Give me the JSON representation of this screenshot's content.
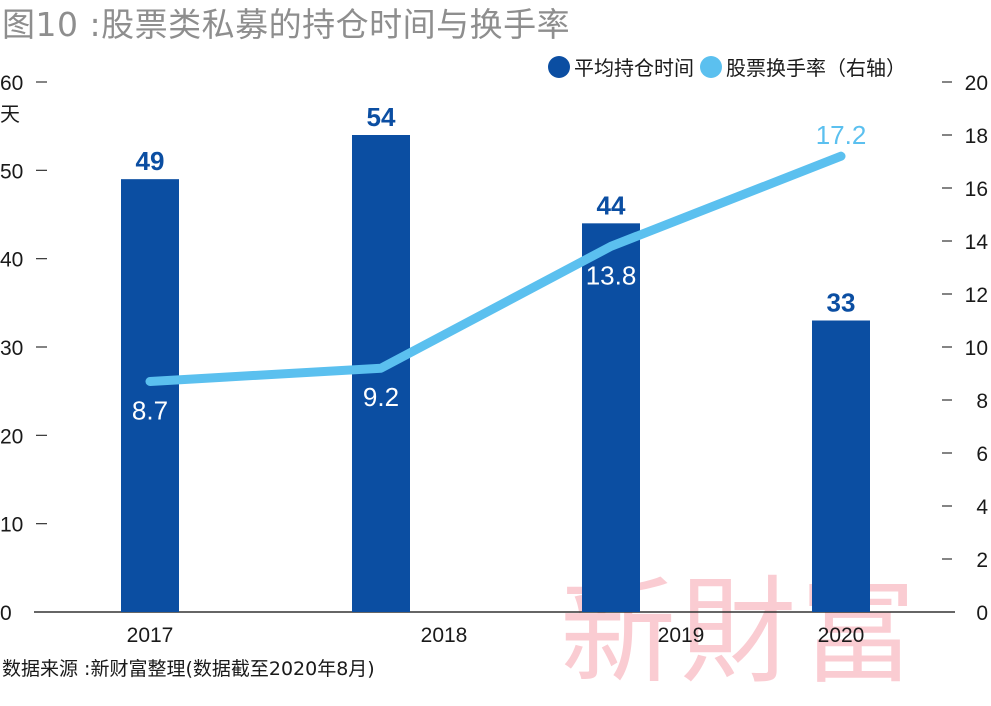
{
  "title": "图10 :股票类私募的持仓时间与换手率",
  "source": "数据来源 :新财富整理(数据截至2020年8月)",
  "watermark": "新財富",
  "colors": {
    "bar": "#0b4ea2",
    "line": "#5bc0ef",
    "axis": "#333333",
    "title": "#8e8e8e"
  },
  "chart_data": {
    "type": "bar+line",
    "categories": [
      "2017",
      "2018",
      "2019",
      "2020"
    ],
    "series": [
      {
        "name": "平均持仓时间",
        "kind": "bar",
        "axis": "left",
        "values": [
          49,
          54,
          44,
          33
        ]
      },
      {
        "name": "股票换手率（右轴）",
        "kind": "line",
        "axis": "right",
        "values": [
          8.7,
          9.2,
          13.8,
          17.2
        ]
      }
    ],
    "left_axis": {
      "min": 0,
      "max": 60,
      "ticks": [
        0,
        10,
        20,
        30,
        40,
        50,
        60
      ],
      "unit": "天"
    },
    "right_axis": {
      "min": 0,
      "max": 20,
      "ticks": [
        0,
        2,
        4,
        6,
        8,
        10,
        12,
        14,
        16,
        18,
        20
      ]
    },
    "legend": [
      "平均持仓时间",
      "股票换手率（右轴）"
    ],
    "legend_position": "top-right"
  }
}
